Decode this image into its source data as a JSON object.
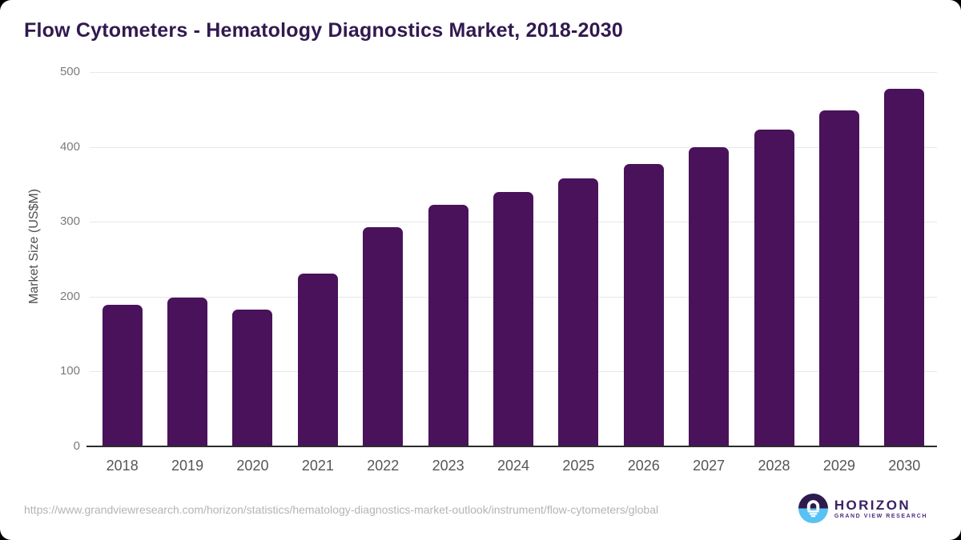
{
  "page": {
    "title": "Flow Cytometers - Hematology Diagnostics Market, 2018-2030"
  },
  "chart_data": {
    "type": "bar",
    "title": "Flow Cytometers - Hematology Diagnostics Market, 2018-2030",
    "categories": [
      "2018",
      "2019",
      "2020",
      "2021",
      "2022",
      "2023",
      "2024",
      "2025",
      "2026",
      "2027",
      "2028",
      "2029",
      "2030"
    ],
    "values": [
      189,
      198,
      182,
      231,
      292,
      322,
      340,
      358,
      377,
      400,
      423,
      449,
      478
    ],
    "xlabel": "",
    "ylabel": "Market Size (US$M)",
    "ylim": [
      0,
      500
    ],
    "yticks": [
      0,
      100,
      200,
      300,
      400,
      500
    ],
    "grid": "horizontal",
    "legend": "none",
    "bar_color": "#49125A"
  },
  "footer": {
    "source_url": "https://www.grandviewresearch.com/horizon/statistics/hematology-diagnostics-market-outlook/instrument/flow-cytometers/global",
    "logo": {
      "name": "HORIZON",
      "subtitle": "GRAND VIEW RESEARCH",
      "icon": "sun-horizon-icon",
      "colors": {
        "dark_purple": "#2D1B4E",
        "light_blue": "#57C2F3",
        "white": "#FFFFFF"
      }
    }
  }
}
